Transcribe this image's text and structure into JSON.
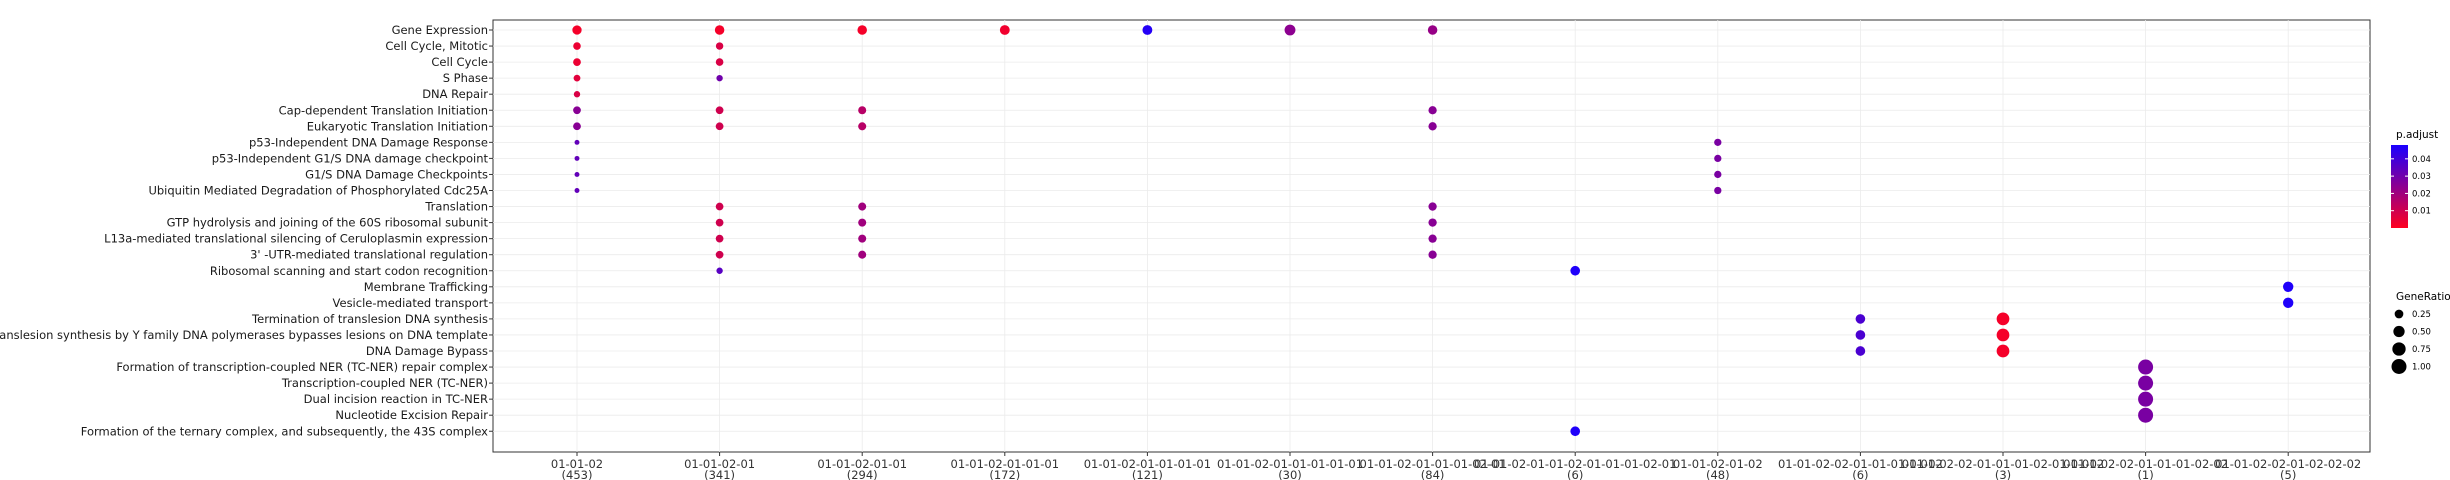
{
  "chart_data": {
    "type": "scatter",
    "title": "",
    "xlabel": "",
    "ylabel": "",
    "grid": true,
    "legend_position": "right",
    "categories": [
      {
        "label": "01-01-02",
        "count": "(453)"
      },
      {
        "label": "01-01-02-01",
        "count": "(341)"
      },
      {
        "label": "01-01-02-01-01",
        "count": "(294)"
      },
      {
        "label": "01-01-02-01-01-01",
        "count": "(172)"
      },
      {
        "label": "01-01-02-01-01-01-01",
        "count": "(121)"
      },
      {
        "label": "01-01-02-01-01-01-01-01",
        "count": "(30)"
      },
      {
        "label": "01-01-02-01-01-01-02-01",
        "count": "(84)"
      },
      {
        "label": "01-01-02-01-01-02-01-01-01-02-01",
        "count": "(6)"
      },
      {
        "label": "01-01-02-01-02",
        "count": "(48)"
      },
      {
        "label": "01-01-02-02-01-01-01-01-02",
        "count": "(6)"
      },
      {
        "label": "01-01-02-02-01-01-01-02-01-01-02",
        "count": "(3)"
      },
      {
        "label": "01-01-02-02-01-01-01-02-02",
        "count": "(1)"
      },
      {
        "label": "01-01-02-02-01-02-02-02",
        "count": "(5)"
      }
    ],
    "terms": [
      "Gene Expression",
      "Cell Cycle, Mitotic",
      "Cell Cycle",
      "S Phase",
      "DNA Repair",
      "Cap-dependent Translation Initiation",
      "Eukaryotic Translation Initiation",
      "p53-Independent DNA Damage Response",
      "p53-Independent G1/S DNA damage checkpoint",
      "G1/S DNA Damage Checkpoints",
      "Ubiquitin Mediated Degradation of Phosphorylated Cdc25A",
      "Translation",
      "GTP hydrolysis and joining of the 60S ribosomal subunit",
      "L13a-mediated translational silencing of Ceruloplasmin expression",
      "3' -UTR-mediated translational regulation",
      "Ribosomal scanning and start codon recognition",
      "Membrane Trafficking",
      "Vesicle-mediated transport",
      "Termination of translesion DNA synthesis",
      "Translesion synthesis by Y family DNA polymerases bypasses lesions on DNA template",
      "DNA Damage Bypass",
      "Formation of transcription-coupled NER (TC-NER) repair complex",
      "Transcription-coupled NER (TC-NER)",
      "Dual incision reaction in TC-NER",
      "Nucleotide Excision Repair",
      "Formation of the ternary complex, and subsequently, the 43S complex"
    ],
    "points": [
      {
        "x": "01-01-02",
        "y": "Gene Expression",
        "gene_ratio": 0.3,
        "p_adjust": 0.002
      },
      {
        "x": "01-01-02",
        "y": "Cell Cycle, Mitotic",
        "gene_ratio": 0.17,
        "p_adjust": 0.004
      },
      {
        "x": "01-01-02",
        "y": "Cell Cycle",
        "gene_ratio": 0.18,
        "p_adjust": 0.004
      },
      {
        "x": "01-01-02",
        "y": "S Phase",
        "gene_ratio": 0.12,
        "p_adjust": 0.006
      },
      {
        "x": "01-01-02",
        "y": "DNA Repair",
        "gene_ratio": 0.1,
        "p_adjust": 0.008
      },
      {
        "x": "01-01-02",
        "y": "Cap-dependent Translation Initiation",
        "gene_ratio": 0.18,
        "p_adjust": 0.025
      },
      {
        "x": "01-01-02",
        "y": "Eukaryotic Translation Initiation",
        "gene_ratio": 0.18,
        "p_adjust": 0.025
      },
      {
        "x": "01-01-02",
        "y": "p53-Independent DNA Damage Response",
        "gene_ratio": 0.04,
        "p_adjust": 0.033
      },
      {
        "x": "01-01-02",
        "y": "p53-Independent G1/S DNA damage checkpoint",
        "gene_ratio": 0.04,
        "p_adjust": 0.033
      },
      {
        "x": "01-01-02",
        "y": "G1/S DNA Damage Checkpoints",
        "gene_ratio": 0.04,
        "p_adjust": 0.033
      },
      {
        "x": "01-01-02",
        "y": "Ubiquitin Mediated Degradation of Phosphorylated Cdc25A",
        "gene_ratio": 0.04,
        "p_adjust": 0.033
      },
      {
        "x": "01-01-02-01",
        "y": "Gene Expression",
        "gene_ratio": 0.32,
        "p_adjust": 0.002
      },
      {
        "x": "01-01-02-01",
        "y": "Cell Cycle, Mitotic",
        "gene_ratio": 0.16,
        "p_adjust": 0.008
      },
      {
        "x": "01-01-02-01",
        "y": "Cell Cycle",
        "gene_ratio": 0.17,
        "p_adjust": 0.008
      },
      {
        "x": "01-01-02-01",
        "y": "S Phase",
        "gene_ratio": 0.1,
        "p_adjust": 0.03
      },
      {
        "x": "01-01-02-01",
        "y": "Cap-dependent Translation Initiation",
        "gene_ratio": 0.18,
        "p_adjust": 0.01
      },
      {
        "x": "01-01-02-01",
        "y": "Eukaryotic Translation Initiation",
        "gene_ratio": 0.18,
        "p_adjust": 0.01
      },
      {
        "x": "01-01-02-01",
        "y": "Translation",
        "gene_ratio": 0.18,
        "p_adjust": 0.01
      },
      {
        "x": "01-01-02-01",
        "y": "GTP hydrolysis and joining of the 60S ribosomal subunit",
        "gene_ratio": 0.18,
        "p_adjust": 0.01
      },
      {
        "x": "01-01-02-01",
        "y": "L13a-mediated translational silencing of Ceruloplasmin expression",
        "gene_ratio": 0.18,
        "p_adjust": 0.01
      },
      {
        "x": "01-01-02-01",
        "y": "3' -UTR-mediated translational regulation",
        "gene_ratio": 0.18,
        "p_adjust": 0.01
      },
      {
        "x": "01-01-02-01",
        "y": "Ribosomal scanning and start codon recognition",
        "gene_ratio": 0.1,
        "p_adjust": 0.035
      },
      {
        "x": "01-01-02-01-01",
        "y": "Gene Expression",
        "gene_ratio": 0.32,
        "p_adjust": 0.002
      },
      {
        "x": "01-01-02-01-01",
        "y": "Cap-dependent Translation Initiation",
        "gene_ratio": 0.2,
        "p_adjust": 0.015
      },
      {
        "x": "01-01-02-01-01",
        "y": "Eukaryotic Translation Initiation",
        "gene_ratio": 0.2,
        "p_adjust": 0.015
      },
      {
        "x": "01-01-02-01-01",
        "y": "Translation",
        "gene_ratio": 0.2,
        "p_adjust": 0.02
      },
      {
        "x": "01-01-02-01-01",
        "y": "GTP hydrolysis and joining of the 60S ribosomal subunit",
        "gene_ratio": 0.2,
        "p_adjust": 0.02
      },
      {
        "x": "01-01-02-01-01",
        "y": "L13a-mediated translational silencing of Ceruloplasmin expression",
        "gene_ratio": 0.2,
        "p_adjust": 0.02
      },
      {
        "x": "01-01-02-01-01",
        "y": "3' -UTR-mediated translational regulation",
        "gene_ratio": 0.2,
        "p_adjust": 0.02
      },
      {
        "x": "01-01-02-01-01-01",
        "y": "Gene Expression",
        "gene_ratio": 0.35,
        "p_adjust": 0.003
      },
      {
        "x": "01-01-02-01-01-01-01",
        "y": "Gene Expression",
        "gene_ratio": 0.35,
        "p_adjust": 0.046
      },
      {
        "x": "01-01-02-01-01-01-01-01",
        "y": "Gene Expression",
        "gene_ratio": 0.45,
        "p_adjust": 0.024
      },
      {
        "x": "01-01-02-01-01-01-02-01",
        "y": "Gene Expression",
        "gene_ratio": 0.32,
        "p_adjust": 0.022
      },
      {
        "x": "01-01-02-01-01-01-02-01",
        "y": "Cap-dependent Translation Initiation",
        "gene_ratio": 0.22,
        "p_adjust": 0.025
      },
      {
        "x": "01-01-02-01-01-01-02-01",
        "y": "Eukaryotic Translation Initiation",
        "gene_ratio": 0.22,
        "p_adjust": 0.025
      },
      {
        "x": "01-01-02-01-01-01-02-01",
        "y": "Translation",
        "gene_ratio": 0.22,
        "p_adjust": 0.025
      },
      {
        "x": "01-01-02-01-01-01-02-01",
        "y": "GTP hydrolysis and joining of the 60S ribosomal subunit",
        "gene_ratio": 0.22,
        "p_adjust": 0.025
      },
      {
        "x": "01-01-02-01-01-01-02-01",
        "y": "L13a-mediated translational silencing of Ceruloplasmin expression",
        "gene_ratio": 0.22,
        "p_adjust": 0.025
      },
      {
        "x": "01-01-02-01-01-01-02-01",
        "y": "3' -UTR-mediated translational regulation",
        "gene_ratio": 0.22,
        "p_adjust": 0.025
      },
      {
        "x": "01-01-02-01-01-02-01-01-01-02-01",
        "y": "Ribosomal scanning and start codon recognition",
        "gene_ratio": 0.33,
        "p_adjust": 0.047
      },
      {
        "x": "01-01-02-01-01-02-01-01-01-02-01",
        "y": "Formation of the ternary complex, and subsequently, the 43S complex",
        "gene_ratio": 0.33,
        "p_adjust": 0.047
      },
      {
        "x": "01-01-02-01-02",
        "y": "p53-Independent DNA Damage Response",
        "gene_ratio": 0.15,
        "p_adjust": 0.028
      },
      {
        "x": "01-01-02-01-02",
        "y": "p53-Independent G1/S DNA damage checkpoint",
        "gene_ratio": 0.15,
        "p_adjust": 0.028
      },
      {
        "x": "01-01-02-01-02",
        "y": "G1/S DNA Damage Checkpoints",
        "gene_ratio": 0.15,
        "p_adjust": 0.028
      },
      {
        "x": "01-01-02-01-02",
        "y": "Ubiquitin Mediated Degradation of Phosphorylated Cdc25A",
        "gene_ratio": 0.15,
        "p_adjust": 0.028
      },
      {
        "x": "01-01-02-02-01-01-01-01-02",
        "y": "Termination of translesion DNA synthesis",
        "gene_ratio": 0.33,
        "p_adjust": 0.038
      },
      {
        "x": "01-01-02-02-01-01-01-01-02",
        "y": "Translesion synthesis by Y family DNA polymerases bypasses lesions on DNA template",
        "gene_ratio": 0.33,
        "p_adjust": 0.038
      },
      {
        "x": "01-01-02-02-01-01-01-01-02",
        "y": "DNA Damage Bypass",
        "gene_ratio": 0.33,
        "p_adjust": 0.038
      },
      {
        "x": "01-01-02-02-01-01-01-02-01-01-02",
        "y": "Translesion synthesis by Y family DNA polymerases bypasses lesions on DNA template",
        "gene_ratio": 0.67,
        "p_adjust": 0.002
      },
      {
        "x": "01-01-02-02-01-01-01-02-01-01-02",
        "y": "Termination of translesion DNA synthesis",
        "gene_ratio": 0.67,
        "p_adjust": 0.002
      },
      {
        "x": "01-01-02-02-01-01-01-02-01-01-02",
        "y": "DNA Damage Bypass",
        "gene_ratio": 0.67,
        "p_adjust": 0.002
      },
      {
        "x": "01-01-02-02-01-01-01-02-02",
        "y": "Formation of transcription-coupled NER (TC-NER) repair complex",
        "gene_ratio": 1.0,
        "p_adjust": 0.028
      },
      {
        "x": "01-01-02-02-01-01-01-02-02",
        "y": "Transcription-coupled NER (TC-NER)",
        "gene_ratio": 1.0,
        "p_adjust": 0.028
      },
      {
        "x": "01-01-02-02-01-01-01-02-02",
        "y": "Dual incision reaction in TC-NER",
        "gene_ratio": 1.0,
        "p_adjust": 0.028
      },
      {
        "x": "01-01-02-02-01-01-01-02-02",
        "y": "Nucleotide Excision Repair",
        "gene_ratio": 1.0,
        "p_adjust": 0.028
      },
      {
        "x": "01-01-02-02-01-02-02-02",
        "y": "Membrane Trafficking",
        "gene_ratio": 0.4,
        "p_adjust": 0.047
      },
      {
        "x": "01-01-02-02-01-02-02-02",
        "y": "Vesicle-mediated transport",
        "gene_ratio": 0.4,
        "p_adjust": 0.047
      }
    ],
    "legend": {
      "color_title": "p.adjust",
      "color_ticks": [
        "0.04",
        "0.03",
        "0.02",
        "0.01"
      ],
      "color_tick_values": [
        0.04,
        0.03,
        0.02,
        0.01
      ],
      "color_range": [
        0.0,
        0.048
      ],
      "color_low": "#ff0020",
      "color_high": "#1a00ff",
      "size_title": "GeneRatio",
      "size_ticks": [
        "0.25",
        "0.50",
        "0.75",
        "1.00"
      ],
      "size_tick_values": [
        0.25,
        0.5,
        0.75,
        1.0
      ]
    }
  }
}
